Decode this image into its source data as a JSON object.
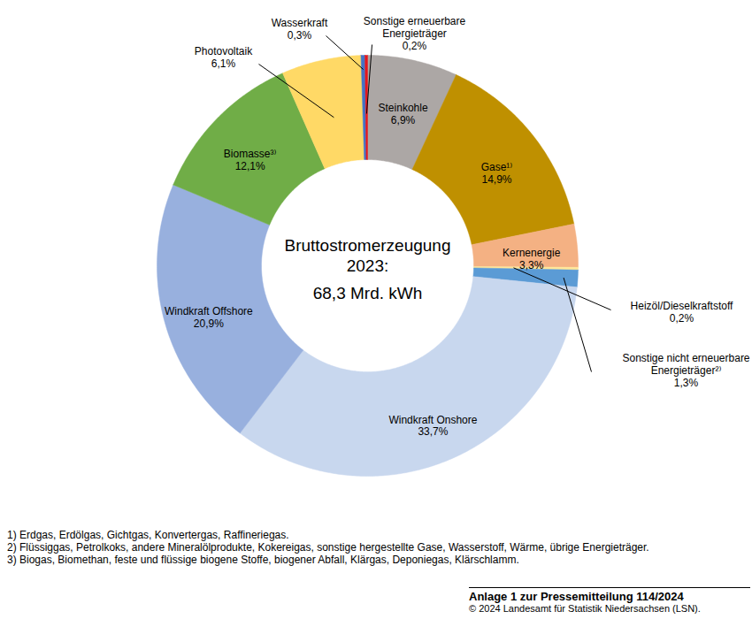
{
  "chart_data": {
    "type": "pie",
    "title": "Bruttostromerzeugung 2023:",
    "subtitle": "68,3 Mrd. kWh",
    "categories": [
      "Steinkohle",
      "Gase¹⁾",
      "Kernenergie",
      "Heizöl/Dieselkraftstoff",
      "Sonstige nicht erneuerbare Energieträger²⁾",
      "Windkraft Onshore",
      "Windkraft Offshore",
      "Biomasse³⁾",
      "Photovoltaik",
      "Wasserkraft",
      "Sonstige erneuerbare Energieträger"
    ],
    "values": [
      6.9,
      14.9,
      3.3,
      0.2,
      1.3,
      33.7,
      20.9,
      12.1,
      6.1,
      0.3,
      0.2
    ],
    "value_labels": [
      "6,9%",
      "14,9%",
      "3,3%",
      "0,2%",
      "1,3%",
      "33,7%",
      "20,9%",
      "12,1%",
      "6,1%",
      "0,3%",
      "0,2%"
    ],
    "colors": [
      "#aca7a5",
      "#bf9000",
      "#f4b183",
      "#ffe699",
      "#5b9bd5",
      "#c8d7ee",
      "#98b0de",
      "#70ad47",
      "#ffd966",
      "#4472c4",
      "#e3161c"
    ],
    "data_labels": true,
    "footnotes": [
      "1) Erdgas, Erdölgas, Gichtgas, Konvertergas, Raffineriegas.",
      "2) Flüssiggas, Petrolkoks, andere Mineralölprodukte, Kokereigas, sonstige hergestellte Gase, Wasserstoff, Wärme, übrige Energieträger.",
      "3) Biogas, Biomethan, feste und flüssige biogene Stoffe, biogener Abfall, Klärgas, Deponiegas, Klärschlamm."
    ],
    "caption": "Anlage 1 zur Pressemitteilung 114/2024",
    "source": "© 2024 Landesamt für Statistik Niedersachsen (LSN)."
  }
}
